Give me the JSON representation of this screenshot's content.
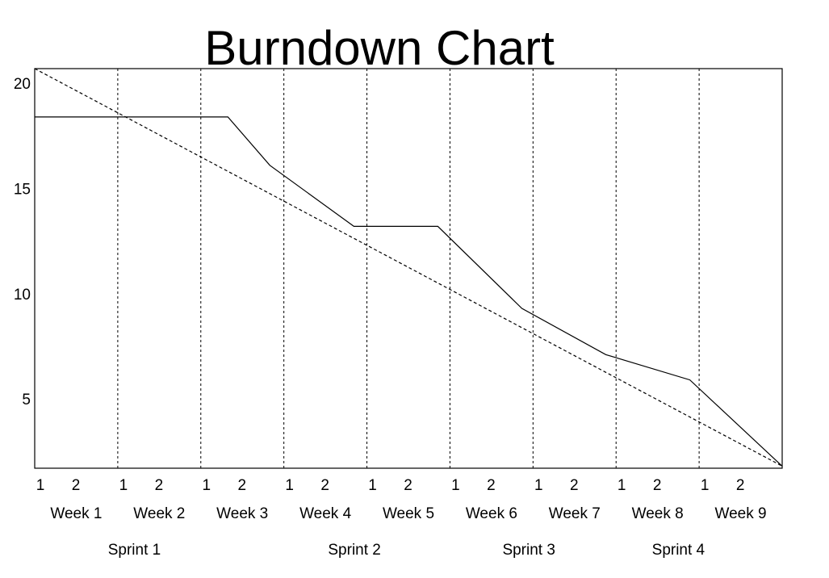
{
  "chart_data": {
    "type": "line",
    "title": "Burndown Chart",
    "xlabel": "",
    "ylabel": "",
    "y_ticks": [
      "20",
      "15",
      "10",
      "5"
    ],
    "ylim": [
      1.7,
      20.7
    ],
    "sub_period_labels": [
      "1",
      "2"
    ],
    "weeks": [
      "Week 1",
      "Week 2",
      "Week 3",
      "Week 4",
      "Week 5",
      "Week 6",
      "Week 7",
      "Week 8",
      "Week 9"
    ],
    "sprints": [
      "Sprint 1",
      "Sprint 2",
      "Sprint 3",
      "Sprint 4"
    ],
    "grid": "dashed vertical lines between weeks",
    "series": [
      {
        "style": "solid",
        "x": [
          0,
          2.3,
          2.8,
          3.8,
          4.8,
          5.8,
          6.8,
          7.8,
          8.9
        ],
        "y": [
          18.4,
          18.4,
          16.1,
          13.2,
          13.2,
          9.3,
          7.1,
          5.9,
          1.8
        ]
      },
      {
        "style": "dashed",
        "x": [
          0,
          8.9
        ],
        "y": [
          20.7,
          1.8
        ]
      }
    ]
  }
}
